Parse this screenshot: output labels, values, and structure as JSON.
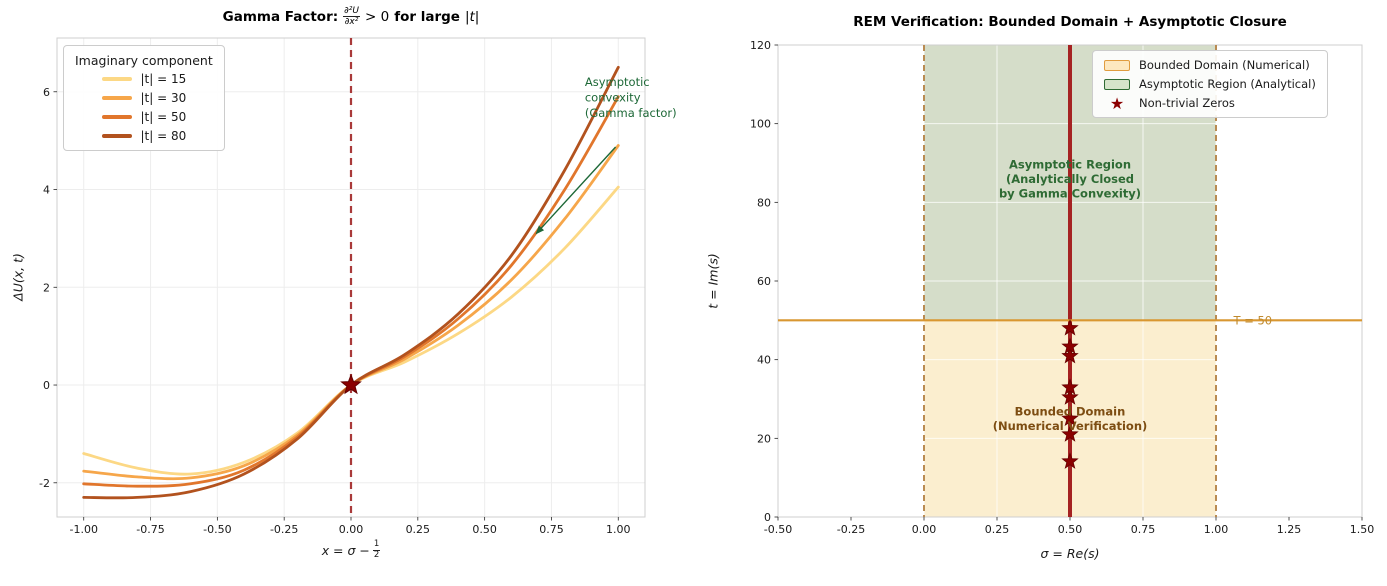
{
  "left_title": {
    "prefix": "Gamma Factor:",
    "frac_num": "∂²U",
    "frac_den": "∂x²",
    "mid": "> 0",
    "bold": "for large",
    "tail": "|t|"
  },
  "left_xlabel": {
    "prefix": "x = σ −",
    "frac_num": "1",
    "frac_den": "2"
  },
  "left_ylabel": "ΔU(x, t)",
  "right_title": "REM Verification: Bounded Domain + Asymptotic Closure",
  "right_xlabel": "σ = Re(s)",
  "right_ylabel": "t = Im(s)",
  "chart_data": [
    {
      "type": "line",
      "title": "Gamma Factor: ∂²U/∂x² > 0 for large |t|",
      "xlabel": "x = σ − 1/2",
      "ylabel": "ΔU(x, t)",
      "xlim": [
        -1.1,
        1.1
      ],
      "ylim": [
        -2.7,
        7.1
      ],
      "grid": true,
      "x_ticks": [
        -1.0,
        -0.75,
        -0.5,
        -0.25,
        0.0,
        0.25,
        0.5,
        0.75,
        1.0
      ],
      "x_tick_labels": [
        "-1.00",
        "-0.75",
        "-0.50",
        "-0.25",
        "0.00",
        "0.25",
        "0.50",
        "0.75",
        "1.00"
      ],
      "y_ticks": [
        -2,
        0,
        2,
        4,
        6
      ],
      "y_tick_labels": [
        "-2",
        "0",
        "2",
        "4",
        "6"
      ],
      "legend": {
        "title": "Imaginary component",
        "loc": "upper left"
      },
      "series": [
        {
          "name": "|t| = 15",
          "color": "#fcd885",
          "points": [
            [
              -1.0,
              -1.4
            ],
            [
              -0.8,
              -1.7
            ],
            [
              -0.6,
              -1.82
            ],
            [
              -0.4,
              -1.58
            ],
            [
              -0.2,
              -0.98
            ],
            [
              0,
              0
            ],
            [
              0.2,
              0.47
            ],
            [
              0.4,
              1.05
            ],
            [
              0.6,
              1.8
            ],
            [
              0.8,
              2.8
            ],
            [
              1.0,
              4.05
            ]
          ]
        },
        {
          "name": "|t| = 30",
          "color": "#f6a64a",
          "points": [
            [
              -1.0,
              -1.76
            ],
            [
              -0.8,
              -1.88
            ],
            [
              -0.6,
              -1.9
            ],
            [
              -0.4,
              -1.65
            ],
            [
              -0.2,
              -1.02
            ],
            [
              0,
              0
            ],
            [
              0.2,
              0.53
            ],
            [
              0.4,
              1.22
            ],
            [
              0.6,
              2.15
            ],
            [
              0.8,
              3.4
            ],
            [
              1.0,
              4.9
            ]
          ]
        },
        {
          "name": "|t| = 50",
          "color": "#e1762c",
          "points": [
            [
              -1.0,
              -2.02
            ],
            [
              -0.8,
              -2.07
            ],
            [
              -0.6,
              -2.02
            ],
            [
              -0.4,
              -1.74
            ],
            [
              -0.2,
              -1.06
            ],
            [
              0,
              0
            ],
            [
              0.2,
              0.58
            ],
            [
              0.4,
              1.35
            ],
            [
              0.6,
              2.45
            ],
            [
              0.8,
              4.0
            ],
            [
              1.0,
              5.9
            ]
          ]
        },
        {
          "name": "|t| = 80",
          "color": "#b2521e",
          "points": [
            [
              -1.0,
              -2.3
            ],
            [
              -0.8,
              -2.3
            ],
            [
              -0.6,
              -2.18
            ],
            [
              -0.4,
              -1.82
            ],
            [
              -0.2,
              -1.1
            ],
            [
              0,
              0
            ],
            [
              0.2,
              0.62
            ],
            [
              0.4,
              1.45
            ],
            [
              0.6,
              2.65
            ],
            [
              0.8,
              4.4
            ],
            [
              1.0,
              6.5
            ]
          ]
        }
      ],
      "vline": {
        "x": 0,
        "color": "#a93939",
        "style": "dashed"
      },
      "star_marker": {
        "x": 0,
        "y": 0,
        "color": "#8b0000"
      },
      "annotation": {
        "lines": [
          "Asymptotic",
          "convexity",
          "(Gamma factor)"
        ],
        "color": "#1d6837",
        "text_x": 0.875,
        "text_y_top": 6.12,
        "arrow_from": [
          0.99,
          4.87
        ],
        "arrow_to": [
          0.69,
          3.08
        ]
      }
    },
    {
      "type": "scatter",
      "title": "REM Verification: Bounded Domain + Asymptotic Closure",
      "xlabel": "σ = Re(s)",
      "ylabel": "t = Im(s)",
      "xlim": [
        -0.5,
        1.5
      ],
      "ylim": [
        0,
        120
      ],
      "grid": true,
      "x_ticks": [
        -0.5,
        -0.25,
        0.0,
        0.25,
        0.5,
        0.75,
        1.0,
        1.25,
        1.5
      ],
      "x_tick_labels": [
        "-0.50",
        "-0.25",
        "0.00",
        "0.25",
        "0.50",
        "0.75",
        "1.00",
        "1.25",
        "1.50"
      ],
      "y_ticks": [
        0,
        20,
        40,
        60,
        80,
        100,
        120
      ],
      "y_tick_labels": [
        "0",
        "20",
        "40",
        "60",
        "80",
        "100",
        "120"
      ],
      "regions": [
        {
          "name": "bounded-domain",
          "x0": 0,
          "x1": 1,
          "y0": 0,
          "y1": 50,
          "fill": "#fbeecf",
          "label_lines": [
            "Bounded Domain",
            "(Numerical Verification)"
          ],
          "label_color": "#7d4d12",
          "label_x": 0.5,
          "label_y": 24
        },
        {
          "name": "asymptotic-region",
          "x0": 0,
          "x1": 1,
          "y0": 50,
          "y1": 120,
          "fill": "#d5ddc9",
          "label_lines": [
            "Asymptotic Region",
            "(Analytically Closed",
            "by Gamma Convexity)"
          ],
          "label_color": "#2e6b34",
          "label_x": 0.5,
          "label_y": 85
        }
      ],
      "boundary_lines": {
        "x_values": [
          0,
          1
        ],
        "color": "#b98b52",
        "style": "dashed"
      },
      "critical_line": {
        "x": 0.5,
        "color": "#a52222"
      },
      "threshold_line": {
        "y": 50,
        "color": "#d99731",
        "label": "T = 50",
        "label_x": 1.06
      },
      "zeros": {
        "sigma": 0.5,
        "color": "#8b0000",
        "t_values": [
          14.13,
          21.02,
          25.01,
          30.42,
          32.94,
          40.92,
          43.33,
          48.01
        ]
      },
      "legend": [
        {
          "label": "Bounded Domain (Numerical)",
          "swatch": "patch",
          "fill": "#fde8c0",
          "edge": "#e09c3f"
        },
        {
          "label": "Asymptotic Region (Analytical)",
          "swatch": "patch",
          "fill": "#d6e4ca",
          "edge": "#2f6b33"
        },
        {
          "label": "Non-trivial Zeros",
          "swatch": "star",
          "color": "#8b0000"
        }
      ]
    }
  ]
}
